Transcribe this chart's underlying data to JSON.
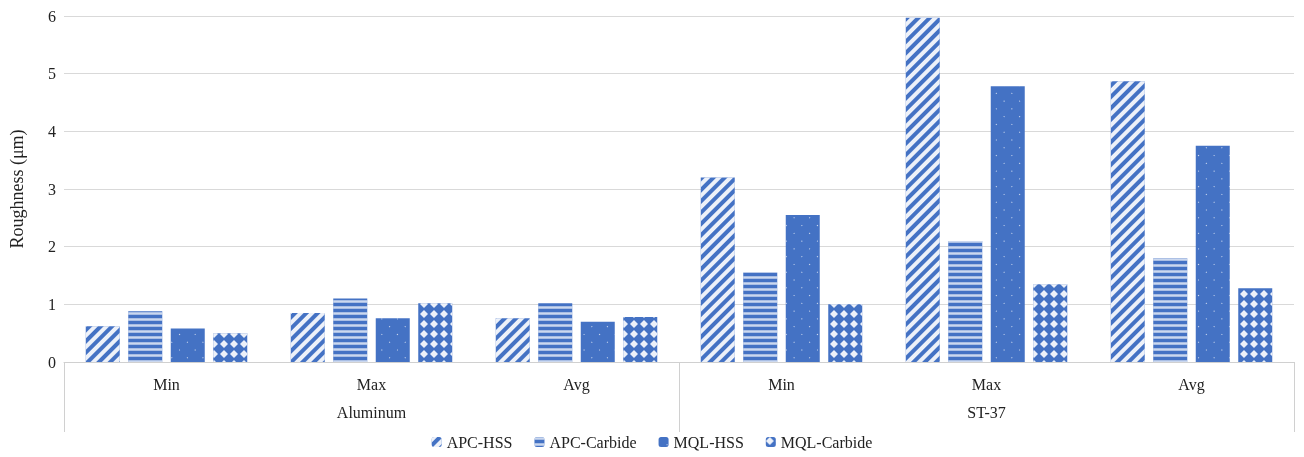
{
  "chart_data": {
    "type": "bar",
    "ylabel": "Roughness (μm)",
    "categories": [
      "Min",
      "Max",
      "Avg",
      "Min",
      "Max",
      "Avg"
    ],
    "annotations": [
      "Aluminum",
      "ST-37"
    ],
    "series": [
      {
        "name": "APC-HSS",
        "color": "#4472c4",
        "values": [
          0.62,
          0.85,
          0.76,
          3.2,
          5.97,
          4.87
        ]
      },
      {
        "name": "APC-Carbide",
        "color": "#4472c4",
        "values": [
          0.88,
          1.1,
          1.02,
          1.55,
          2.1,
          1.8
        ]
      },
      {
        "name": "MQL-HSS",
        "color": "#4472c4",
        "values": [
          0.58,
          0.76,
          0.7,
          2.55,
          4.78,
          3.75
        ]
      },
      {
        "name": "MQL-Carbide",
        "color": "#4472c4",
        "values": [
          0.5,
          1.02,
          0.78,
          1.0,
          1.35,
          1.28
        ]
      }
    ],
    "ylim": [
      0,
      6
    ],
    "yticks": [
      0,
      1,
      2,
      3,
      4,
      5,
      6
    ],
    "grid": "y",
    "legend": "bottom"
  }
}
